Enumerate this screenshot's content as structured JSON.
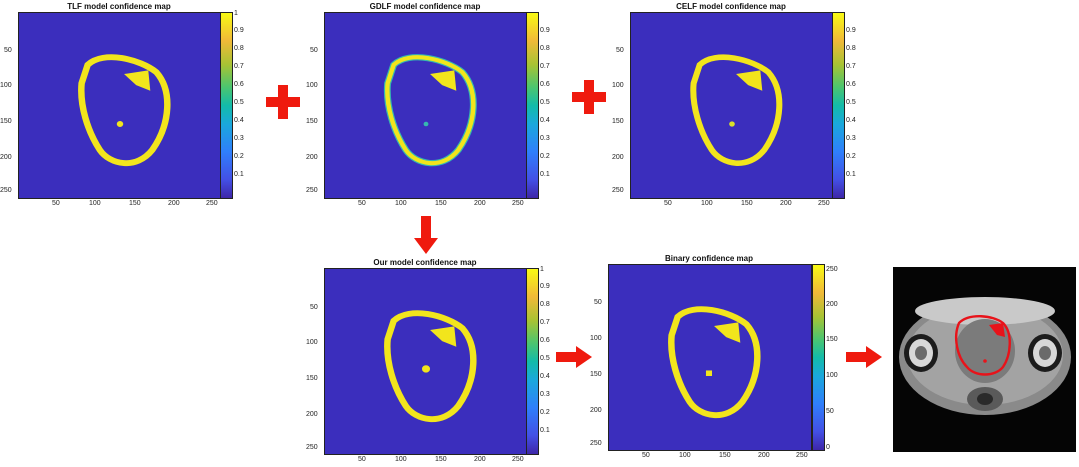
{
  "colors": {
    "background_field": "#3b2ebd",
    "contour": "#f2e51c",
    "contour_edge": "#36b8b0",
    "arrow": "#ef1a0e",
    "photo_outline": "#e8131a"
  },
  "panels": {
    "tlf": {
      "title": "TLF model confidence map",
      "y_ticks": [
        "50",
        "100",
        "150",
        "200",
        "250"
      ],
      "x_ticks": [
        "50",
        "100",
        "150",
        "200",
        "250"
      ],
      "colorbar_ticks": [
        "1",
        "0.9",
        "0.8",
        "0.7",
        "0.6",
        "0.5",
        "0.4",
        "0.3",
        "0.2",
        "0.1"
      ]
    },
    "gdlf": {
      "title": "GDLF model confidence map",
      "y_ticks": [
        "50",
        "100",
        "150",
        "200",
        "250"
      ],
      "x_ticks": [
        "50",
        "100",
        "150",
        "200",
        "250"
      ],
      "colorbar_ticks": [
        "0.9",
        "0.8",
        "0.7",
        "0.6",
        "0.5",
        "0.4",
        "0.3",
        "0.2",
        "0.1"
      ]
    },
    "celf": {
      "title": "CELF model confidence map",
      "y_ticks": [
        "50",
        "100",
        "150",
        "200",
        "250"
      ],
      "x_ticks": [
        "50",
        "100",
        "150",
        "200",
        "250"
      ],
      "colorbar_ticks": [
        "0.9",
        "0.8",
        "0.7",
        "0.6",
        "0.5",
        "0.4",
        "0.3",
        "0.2",
        "0.1"
      ]
    },
    "ours": {
      "title": "Our model confidence map",
      "y_ticks": [
        "50",
        "100",
        "150",
        "200",
        "250"
      ],
      "x_ticks": [
        "50",
        "100",
        "150",
        "200",
        "250"
      ],
      "colorbar_ticks": [
        "1",
        "0.9",
        "0.8",
        "0.7",
        "0.6",
        "0.5",
        "0.4",
        "0.3",
        "0.2",
        "0.1"
      ]
    },
    "binary": {
      "title": "Binary confidence map",
      "y_ticks": [
        "50",
        "100",
        "150",
        "200",
        "250"
      ],
      "x_ticks": [
        "50",
        "100",
        "150",
        "200",
        "250"
      ],
      "colorbar_ticks": [
        "250",
        "200",
        "150",
        "100",
        "50",
        "0"
      ]
    }
  },
  "icons": {
    "plus": "plus-icon",
    "arrow_down": "arrow-down-icon",
    "arrow_right": "arrow-right-icon"
  }
}
